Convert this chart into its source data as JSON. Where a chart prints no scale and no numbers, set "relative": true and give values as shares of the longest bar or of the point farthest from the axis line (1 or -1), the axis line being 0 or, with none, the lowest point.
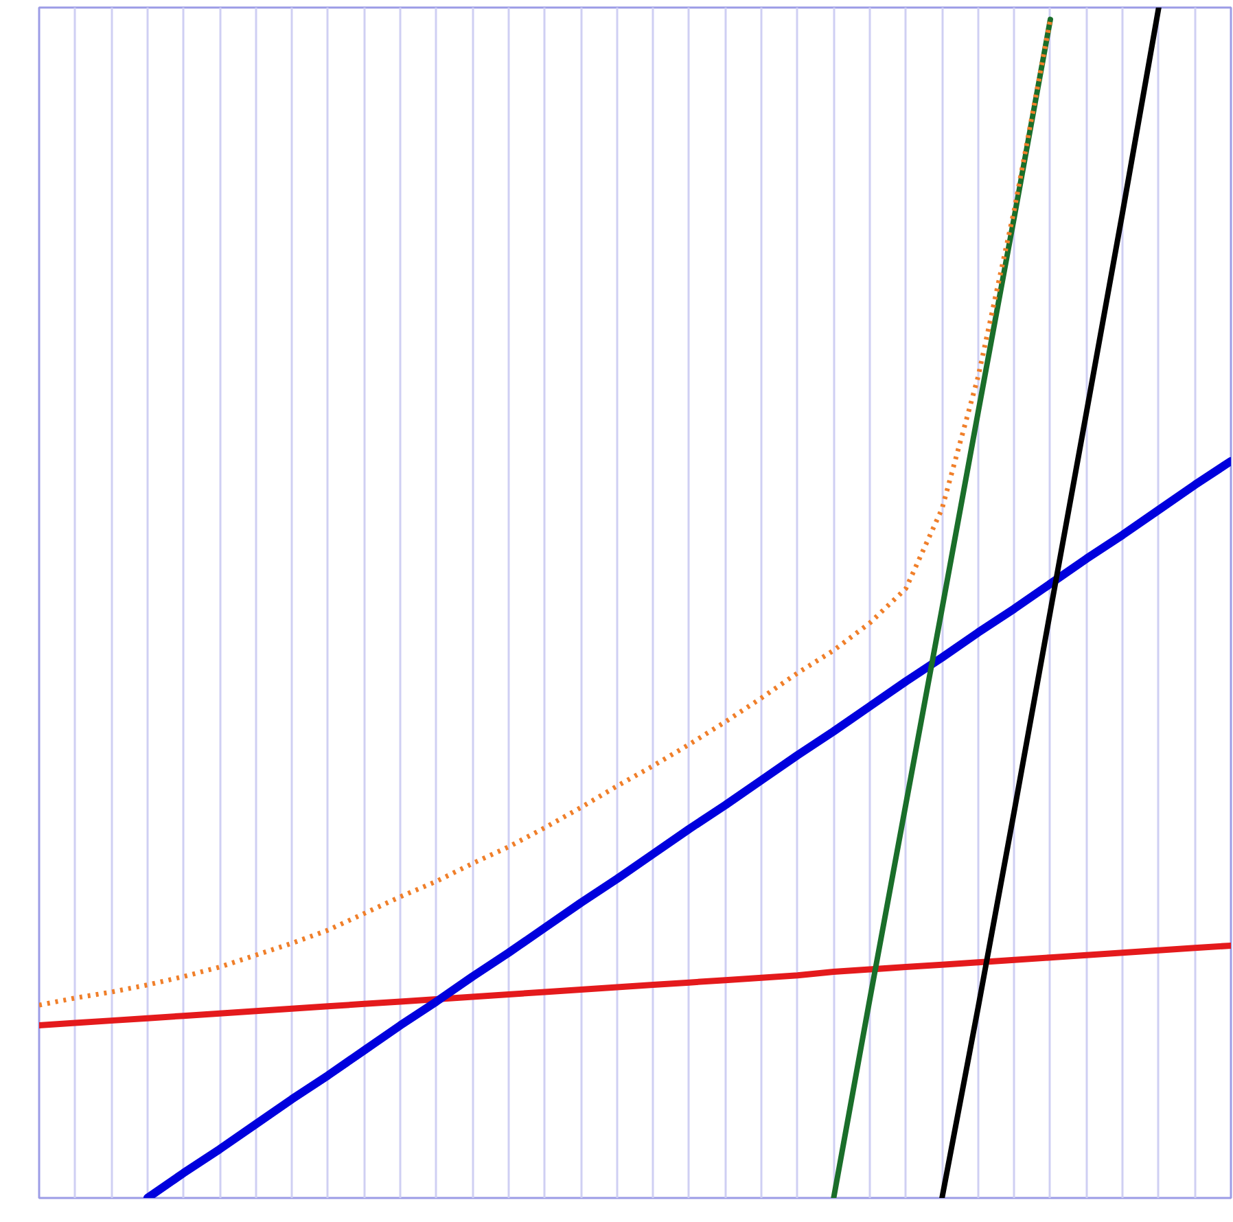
{
  "chart_data": {
    "type": "line",
    "relative": true,
    "grid": "x",
    "categories": [
      null,
      null,
      null,
      null,
      null,
      null,
      null,
      null,
      null,
      null,
      null,
      null,
      null,
      null,
      null,
      null,
      null,
      null,
      null,
      null,
      null,
      null,
      null,
      null,
      null,
      null,
      null,
      null,
      null,
      null,
      null,
      null,
      null,
      null
    ],
    "series": [
      {
        "color": "#e41a1c",
        "line_style": "solid",
        "values": [
          0.145,
          0.147,
          0.149,
          0.151,
          0.153,
          0.155,
          0.157,
          0.159,
          0.161,
          0.163,
          0.165,
          0.167,
          0.169,
          0.171,
          0.173,
          0.175,
          0.177,
          0.179,
          0.181,
          0.183,
          0.185,
          0.187,
          0.19,
          0.192,
          0.194,
          0.196,
          0.198,
          0.2,
          0.202,
          0.204,
          0.206,
          0.208,
          0.21,
          0.212
        ]
      },
      {
        "color": "#0000dd",
        "line_style": "solid",
        "values": [
          null,
          null,
          null,
          0,
          0.021,
          0.041,
          0.062,
          0.083,
          0.103,
          0.124,
          0.145,
          0.165,
          0.186,
          0.206,
          0.227,
          0.248,
          0.268,
          0.289,
          0.31,
          0.33,
          0.351,
          0.372,
          0.392,
          0.413,
          0.434,
          0.454,
          0.475,
          0.495,
          0.516,
          0.537,
          0.557,
          0.578,
          0.599,
          0.619
        ]
      },
      {
        "color": "#1a6e2a",
        "line_style": "solid",
        "values": [
          null,
          null,
          null,
          null,
          null,
          null,
          null,
          null,
          null,
          null,
          null,
          null,
          null,
          null,
          null,
          null,
          null,
          null,
          null,
          null,
          null,
          null,
          0,
          0.167,
          0.331,
          0.495,
          0.66,
          0.824,
          0.99,
          null,
          null,
          null,
          null,
          null
        ]
      },
      {
        "color": "#000000",
        "line_style": "solid",
        "values": [
          null,
          null,
          null,
          null,
          null,
          null,
          null,
          null,
          null,
          null,
          null,
          null,
          null,
          null,
          null,
          null,
          null,
          null,
          null,
          null,
          null,
          null,
          null,
          null,
          null,
          0,
          0.16,
          0.325,
          0.493,
          0.66,
          0.828,
          1.0,
          null,
          null
        ]
      },
      {
        "color": "#f07f2a",
        "line_style": "dotted",
        "values": [
          0.162,
          0.168,
          0.173,
          0.179,
          0.186,
          0.194,
          0.204,
          0.214,
          0.225,
          0.239,
          0.253,
          0.266,
          0.281,
          0.295,
          0.311,
          0.328,
          0.346,
          0.363,
          0.381,
          0.4,
          0.42,
          0.441,
          0.46,
          0.483,
          0.512,
          0.579,
          0.69,
          0.83,
          0.99,
          null,
          null,
          null,
          null,
          null
        ]
      }
    ]
  }
}
